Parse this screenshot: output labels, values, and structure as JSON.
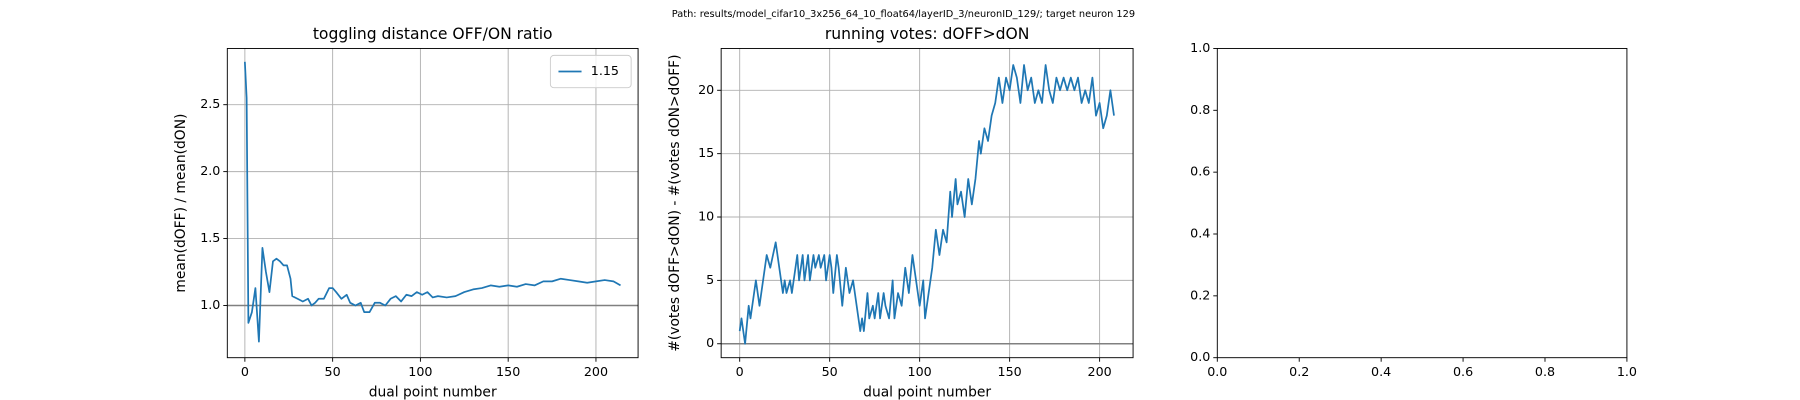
{
  "title": "Path: results/model_cifar10_3x256_64_10_float64/layerID_3/neuronID_129/; target neuron 129",
  "chart_data": [
    {
      "type": "line",
      "title": "toggling distance OFF/ON ratio",
      "xlabel": "dual point number",
      "ylabel": "mean(dOFF) / mean(dON)",
      "x": [
        0,
        1,
        2,
        4,
        6,
        8,
        10,
        12,
        14,
        16,
        18,
        20,
        22,
        24,
        26,
        27,
        30,
        33,
        36,
        38,
        40,
        42,
        45,
        48,
        50,
        52,
        55,
        58,
        60,
        63,
        66,
        68,
        71,
        74,
        77,
        80,
        83,
        86,
        89,
        92,
        95,
        98,
        101,
        104,
        107,
        110,
        115,
        120,
        125,
        130,
        135,
        140,
        145,
        150,
        155,
        160,
        165,
        170,
        175,
        180,
        185,
        190,
        195,
        200,
        205,
        210,
        214
      ],
      "series": [
        {
          "name": "1.15",
          "color": "#1f77b4",
          "values": [
            2.82,
            2.55,
            0.87,
            0.95,
            1.13,
            0.73,
            1.43,
            1.25,
            1.1,
            1.33,
            1.35,
            1.33,
            1.3,
            1.3,
            1.2,
            1.07,
            1.05,
            1.03,
            1.05,
            1.0,
            1.02,
            1.05,
            1.05,
            1.13,
            1.13,
            1.1,
            1.05,
            1.08,
            1.02,
            1.0,
            1.02,
            0.95,
            0.95,
            1.02,
            1.02,
            1.0,
            1.05,
            1.07,
            1.03,
            1.08,
            1.07,
            1.1,
            1.08,
            1.1,
            1.06,
            1.07,
            1.06,
            1.07,
            1.1,
            1.12,
            1.13,
            1.15,
            1.14,
            1.15,
            1.14,
            1.16,
            1.15,
            1.18,
            1.18,
            1.2,
            1.19,
            1.18,
            1.17,
            1.18,
            1.19,
            1.18,
            1.15
          ]
        }
      ],
      "hlines": [
        1
      ],
      "hline_color": "#808080",
      "xlim": [
        -10,
        224
      ],
      "ylim": [
        0.61,
        2.92
      ],
      "xticks": [
        0,
        50,
        100,
        150,
        200
      ],
      "yticks": [
        {
          "value": 1,
          "label": "1.0"
        },
        {
          "value": 1.5,
          "label": "1.5"
        },
        {
          "value": 2,
          "label": "2.0"
        },
        {
          "value": 2.5,
          "label": "2.5"
        }
      ],
      "grid": true,
      "legend": "upper right"
    },
    {
      "type": "line",
      "title": "running votes: dOFF>dON",
      "xlabel": "dual point number",
      "ylabel": "#(votes dOFF>dON) - #(votes dON>dOFF)",
      "x": [
        0,
        1,
        2,
        3,
        5,
        6,
        8,
        9,
        11,
        13,
        15,
        17,
        20,
        22,
        24,
        25,
        26,
        28,
        29,
        31,
        32,
        33,
        35,
        36,
        38,
        39,
        41,
        42,
        44,
        45,
        47,
        48,
        50,
        51,
        52,
        54,
        55,
        57,
        59,
        61,
        63,
        65,
        67,
        68,
        69,
        71,
        72,
        74,
        75,
        77,
        78,
        80,
        81,
        83,
        85,
        86,
        88,
        90,
        92,
        94,
        96,
        98,
        100,
        102,
        103,
        105,
        107,
        109,
        111,
        113,
        115,
        117,
        118,
        120,
        121,
        123,
        125,
        127,
        129,
        131,
        133,
        134,
        136,
        138,
        140,
        142,
        144,
        146,
        148,
        150,
        152,
        154,
        156,
        158,
        160,
        162,
        164,
        166,
        168,
        170,
        172,
        174,
        176,
        178,
        180,
        182,
        184,
        186,
        188,
        190,
        192,
        194,
        196,
        198,
        200,
        202,
        204,
        206,
        208
      ],
      "series": [
        {
          "name": null,
          "color": "#1f77b4",
          "values": [
            1,
            2,
            1,
            0,
            3,
            2,
            4,
            5,
            3,
            5,
            7,
            6,
            8,
            6,
            4,
            5,
            4,
            5,
            4,
            6,
            7,
            5,
            7,
            5,
            7,
            5,
            7,
            6,
            7,
            6,
            7,
            5,
            7,
            6,
            4,
            7,
            6,
            3,
            6,
            4,
            5,
            3,
            1,
            2,
            1,
            4,
            2,
            3,
            2,
            4,
            2,
            4,
            3,
            2,
            5,
            2,
            4,
            3,
            6,
            4,
            7,
            5,
            3,
            5,
            2,
            4,
            6,
            9,
            7,
            9,
            8,
            12,
            10,
            13,
            11,
            12,
            10,
            13,
            11,
            13,
            16,
            15,
            17,
            16,
            18,
            19,
            21,
            19,
            21,
            20,
            22,
            21,
            19,
            22,
            20,
            21,
            19,
            20,
            19,
            22,
            20,
            19,
            21,
            20,
            21,
            20,
            21,
            20,
            21,
            19,
            20,
            19,
            21,
            18,
            19,
            17,
            18,
            20,
            18
          ]
        }
      ],
      "hlines": [
        0
      ],
      "hline_color": "#808080",
      "xlim": [
        -10.3,
        218.6
      ],
      "ylim": [
        -1.1,
        23.3
      ],
      "xticks": [
        0,
        50,
        100,
        150,
        200
      ],
      "yticks": [
        0,
        5,
        10,
        15,
        20
      ],
      "grid": true
    },
    {
      "type": "empty",
      "xlim": [
        0,
        1
      ],
      "ylim": [
        0,
        1
      ],
      "xticks": [
        {
          "value": 0,
          "label": "0.0"
        },
        {
          "value": 0.2,
          "label": "0.2"
        },
        {
          "value": 0.4,
          "label": "0.4"
        },
        {
          "value": 0.6,
          "label": "0.6"
        },
        {
          "value": 0.8,
          "label": "0.8"
        },
        {
          "value": 1,
          "label": "1.0"
        }
      ],
      "yticks": [
        {
          "value": 0,
          "label": "0.0"
        },
        {
          "value": 0.2,
          "label": "0.2"
        },
        {
          "value": 0.4,
          "label": "0.4"
        },
        {
          "value": 0.6,
          "label": "0.6"
        },
        {
          "value": 0.8,
          "label": "0.8"
        },
        {
          "value": 1,
          "label": "1.0"
        }
      ],
      "grid": false
    }
  ]
}
